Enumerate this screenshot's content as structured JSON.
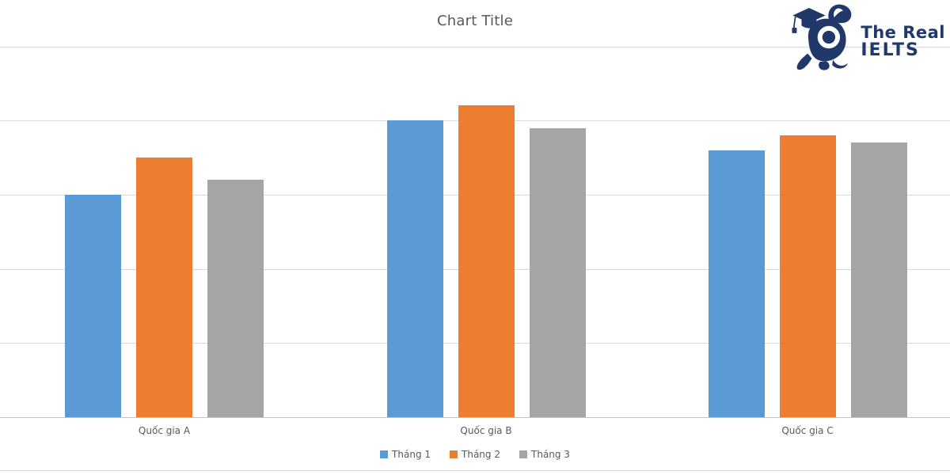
{
  "chart_data": {
    "type": "bar",
    "title": "Chart Title",
    "categories": [
      "Quốc gia A",
      "Quốc gia B",
      "Quốc gia C"
    ],
    "series": [
      {
        "name": "Tháng 1",
        "color": "#5B9BD5",
        "values": [
          30,
          40,
          36
        ]
      },
      {
        "name": "Tháng 2",
        "color": "#ED7D31",
        "values": [
          35,
          42,
          38
        ]
      },
      {
        "name": "Tháng 3",
        "color": "#A5A5A5",
        "values": [
          32,
          39,
          37
        ]
      }
    ],
    "xlabel": "",
    "ylabel": "",
    "ylim": [
      0,
      50
    ],
    "grid_step": 10,
    "grid": true,
    "y_axis_labels": "hidden",
    "legend_position": "bottom",
    "colors": {
      "title_text": "#595959",
      "label_text": "#595959",
      "gridline": "#D9D9D9",
      "axis_line": "#C3C3C3",
      "background": "#FFFFFF"
    }
  },
  "logo": {
    "icon": "rabbit-graduation-cap-icon",
    "line1": "The Real",
    "line2": "IELTS",
    "color": "#21386B"
  }
}
